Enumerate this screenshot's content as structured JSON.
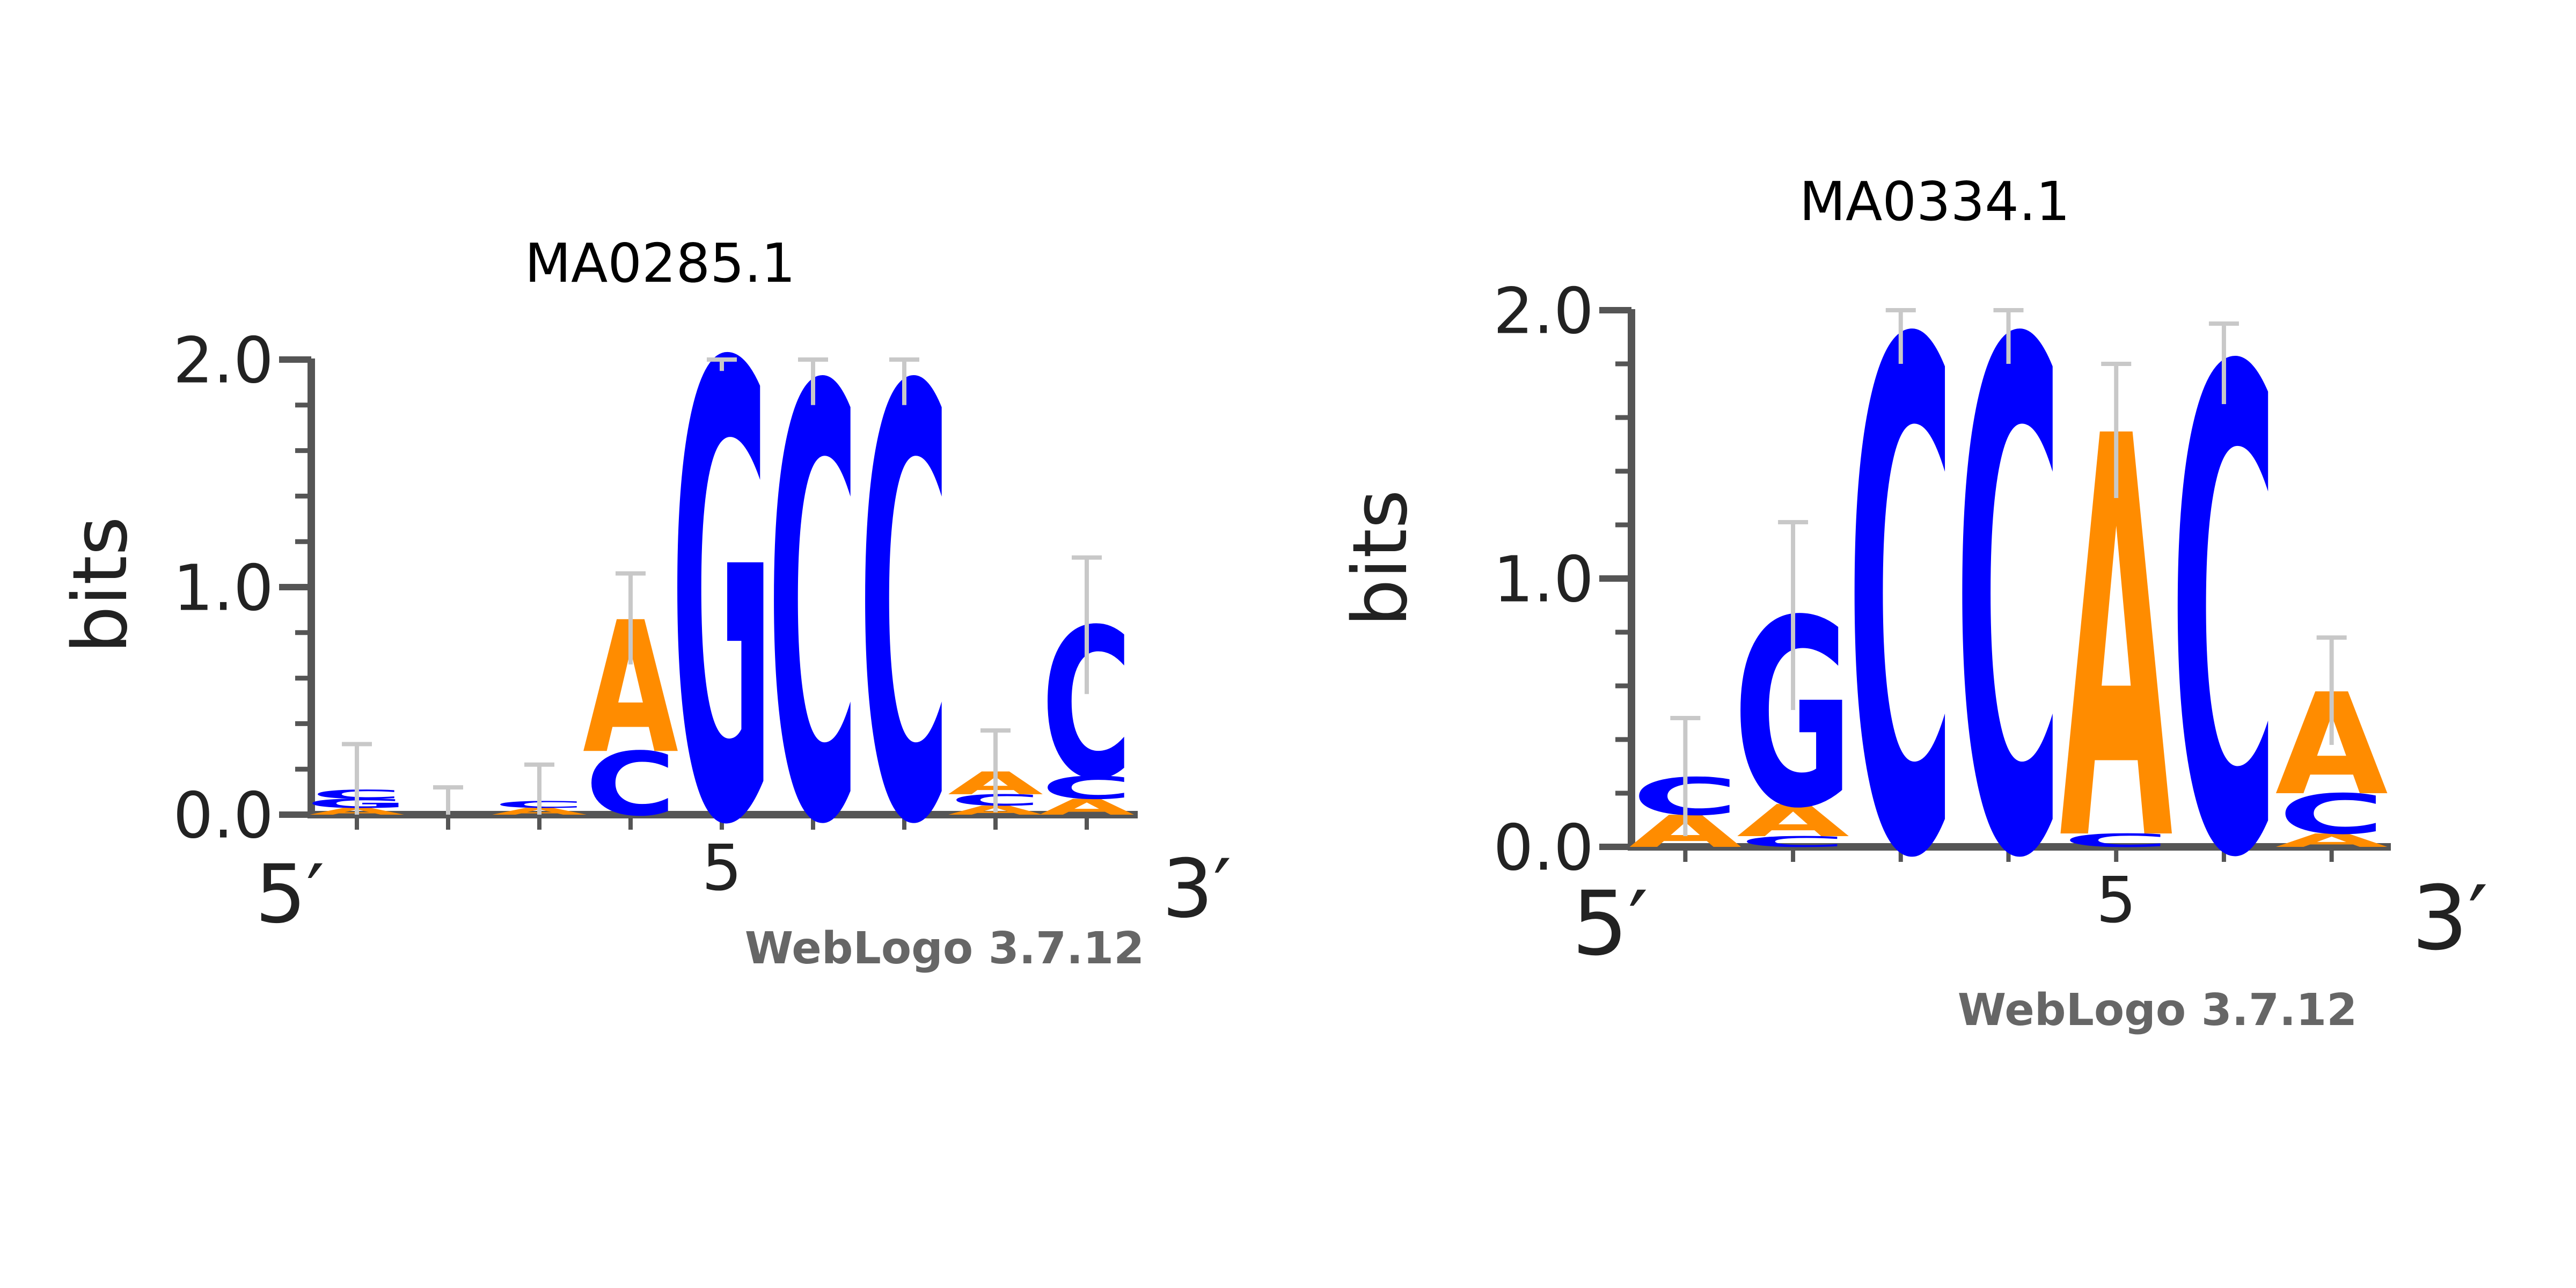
{
  "colors": {
    "A": "#ff8c00",
    "C": "#0000ff",
    "G": "#0000ff",
    "T": "#ff0000",
    "axis": "#555555",
    "errorbar": "#c8c8c8",
    "text": "#222222",
    "watermark": "#666666"
  },
  "axis_text": {
    "ylabel": "bits",
    "x_start": "5′",
    "x_end": "3′",
    "watermark": "WebLogo 3.7.12"
  },
  "chart_data": [
    {
      "type": "sequence-logo",
      "title": "MA0285.1",
      "ylabel": "bits",
      "ylim": [
        0,
        2
      ],
      "yticks": [
        "0.0",
        "1.0",
        "2.0"
      ],
      "xticks": [
        {
          "position": 5,
          "label": "5"
        }
      ],
      "x_start_label": "5′",
      "x_end_label": "3′",
      "watermark": "WebLogo 3.7.12",
      "positions": [
        {
          "pos": 1,
          "stack": [
            [
              "A",
              0.03
            ],
            [
              "G",
              0.04
            ],
            [
              "C",
              0.04
            ]
          ],
          "error": 0.2
        },
        {
          "pos": 2,
          "stack": [],
          "error": 0.12
        },
        {
          "pos": 3,
          "stack": [
            [
              "A",
              0.03
            ],
            [
              "C",
              0.03
            ]
          ],
          "error": 0.16
        },
        {
          "pos": 4,
          "stack": [
            [
              "C",
              0.28
            ],
            [
              "A",
              0.58
            ]
          ],
          "error": 0.2
        },
        {
          "pos": 5,
          "stack": [
            [
              "G",
              2.0
            ]
          ],
          "error": 0.05
        },
        {
          "pos": 6,
          "stack": [
            [
              "C",
              1.9
            ]
          ],
          "error": 0.1
        },
        {
          "pos": 7,
          "stack": [
            [
              "C",
              1.9
            ]
          ],
          "error": 0.1
        },
        {
          "pos": 8,
          "stack": [
            [
              "A",
              0.04
            ],
            [
              "C",
              0.05
            ],
            [
              "A",
              0.1
            ]
          ],
          "error": 0.18
        },
        {
          "pos": 9,
          "stack": [
            [
              "A",
              0.07
            ],
            [
              "C",
              0.1
            ],
            [
              "C",
              0.66
            ]
          ],
          "error": 0.3
        }
      ]
    },
    {
      "type": "sequence-logo",
      "title": "MA0334.1",
      "ylabel": "bits",
      "ylim": [
        0,
        2
      ],
      "yticks": [
        "0.0",
        "1.0",
        "2.0"
      ],
      "xticks": [
        {
          "position": 5,
          "label": "5"
        }
      ],
      "x_start_label": "5′",
      "x_end_label": "3′",
      "watermark": "WebLogo 3.7.12",
      "positions": [
        {
          "pos": 1,
          "stack": [
            [
              "A",
              0.12
            ],
            [
              "C",
              0.14
            ]
          ],
          "error": 0.22
        },
        {
          "pos": 2,
          "stack": [
            [
              "C",
              0.04
            ],
            [
              "A",
              0.12
            ],
            [
              "G",
              0.7
            ]
          ],
          "error": 0.35
        },
        {
          "pos": 3,
          "stack": [
            [
              "C",
              1.9
            ]
          ],
          "error": 0.1
        },
        {
          "pos": 4,
          "stack": [
            [
              "C",
              1.9
            ]
          ],
          "error": 0.1
        },
        {
          "pos": 5,
          "stack": [
            [
              "C",
              0.05
            ],
            [
              "A",
              1.5
            ]
          ],
          "error": 0.25
        },
        {
          "pos": 6,
          "stack": [
            [
              "C",
              1.8
            ]
          ],
          "error": 0.15
        },
        {
          "pos": 7,
          "stack": [
            [
              "A",
              0.05
            ],
            [
              "C",
              0.15
            ],
            [
              "A",
              0.38
            ]
          ],
          "error": 0.2
        }
      ]
    }
  ]
}
